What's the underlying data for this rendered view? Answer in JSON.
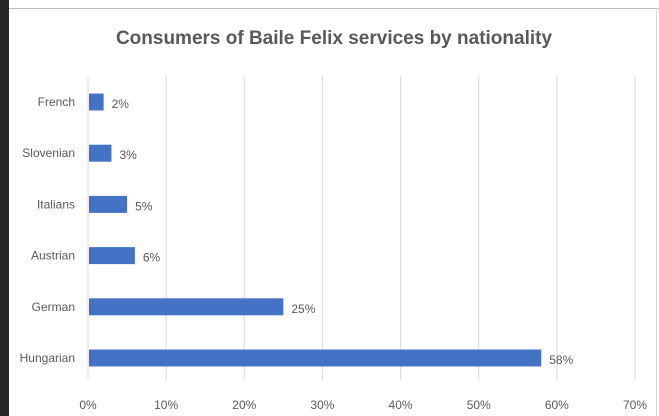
{
  "chart_data": {
    "type": "bar",
    "orientation": "horizontal",
    "title": "Consumers of Baile Felix services by nationality",
    "categories": [
      "French",
      "Slovenian",
      "Italians",
      "Austrian",
      "German",
      "Hungarian"
    ],
    "values": [
      2,
      3,
      5,
      6,
      25,
      58
    ],
    "data_labels": [
      "2%",
      "3%",
      "5%",
      "6%",
      "25%",
      "58%"
    ],
    "xlim": [
      0,
      70
    ],
    "x_ticks": [
      "0%",
      "10%",
      "20%",
      "30%",
      "40%",
      "50%",
      "60%",
      "70%"
    ],
    "xlabel": "",
    "ylabel": "",
    "grid": "vertical",
    "bar_color": "#4472c4",
    "grid_color": "#d9d9d9"
  }
}
